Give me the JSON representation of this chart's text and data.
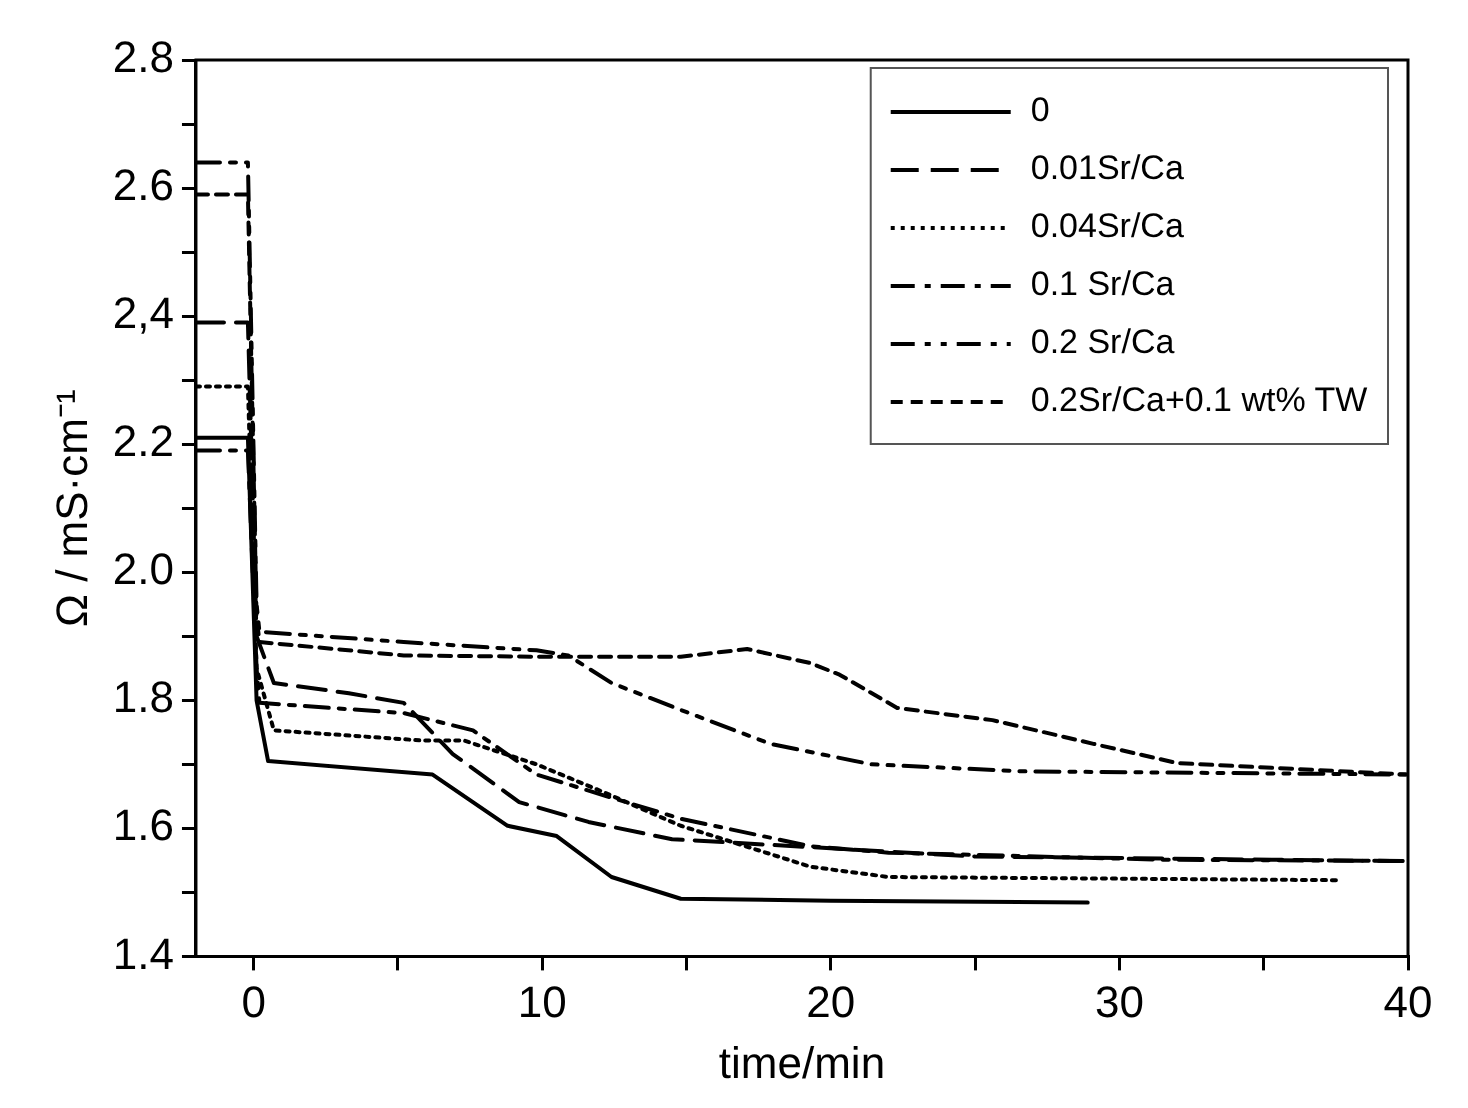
{
  "chart_data": {
    "type": "line",
    "xlabel": "time/min",
    "ylabel": "Ω / mS·cm⁻¹",
    "xlim": [
      -2,
      40
    ],
    "xticks": [
      0,
      {
        "value": 5,
        "label": null
      },
      10,
      {
        "value": 15,
        "label": null
      },
      20,
      {
        "value": 25,
        "label": null
      },
      30,
      {
        "value": 35,
        "label": null
      },
      40
    ],
    "ylim": [
      1.4,
      2.8
    ],
    "yticks": [
      1.4,
      {
        "value": 1.5,
        "label": null
      },
      1.6,
      {
        "value": 1.7,
        "label": null
      },
      1.8,
      {
        "value": 1.9,
        "label": null
      },
      {
        "value": 2,
        "label": "2.0"
      },
      {
        "value": 2.1,
        "label": null
      },
      2.2,
      {
        "value": 2.3,
        "label": null
      },
      {
        "value": 2.4,
        "label": "2,4"
      },
      {
        "value": 2.5,
        "label": null
      },
      2.6,
      {
        "value": 2.7,
        "label": null
      },
      2.8
    ],
    "grid": false,
    "legend": "top right",
    "marker": "none",
    "series": [
      {
        "name": "0",
        "color": "#000000",
        "line_style": "solid",
        "x": [
          -2,
          -0.2,
          0.1,
          0.5,
          6.2,
          8.8,
          10.5,
          12.4,
          14.8,
          20,
          28.9
        ],
        "values": [
          2.21,
          2.21,
          1.8,
          1.705,
          1.684,
          1.604,
          1.588,
          1.524,
          1.49,
          1.487,
          1.484
        ]
      },
      {
        "name": "0.01Sr/Ca",
        "color": "#000000",
        "line_style": "dashed",
        "x": [
          -2,
          -0.2,
          0.1,
          0.7,
          3.3,
          5.2,
          6.9,
          9.2,
          11.6,
          14.5,
          25,
          39.4,
          40
        ],
        "values": [
          2.39,
          2.39,
          1.9,
          1.827,
          1.811,
          1.796,
          1.716,
          1.641,
          1.61,
          1.583,
          1.556,
          1.549,
          1.549
        ]
      },
      {
        "name": "0.04Sr/Ca",
        "color": "#000000",
        "line_style": "dotted",
        "x": [
          -2,
          -0.2,
          0.1,
          0.7,
          5.9,
          7.3,
          9.8,
          12.1,
          14.8,
          19.3,
          22,
          37.6
        ],
        "values": [
          2.29,
          2.29,
          1.85,
          1.753,
          1.737,
          1.737,
          1.7,
          1.657,
          1.604,
          1.54,
          1.524,
          1.519
        ]
      },
      {
        "name": "0.1 Sr/Ca",
        "color": "#000000",
        "line_style": "dashdot",
        "x": [
          -2,
          -0.2,
          0.1,
          0.2,
          5.2,
          7.6,
          9.8,
          12.1,
          14.8,
          19.3,
          22,
          31.5,
          40
        ],
        "values": [
          2.19,
          2.19,
          1.85,
          1.796,
          1.78,
          1.753,
          1.684,
          1.652,
          1.615,
          1.572,
          1.562,
          1.551,
          1.549
        ]
      },
      {
        "name": "0.2 Sr/Ca",
        "color": "#000000",
        "line_style": "dashdotdot",
        "x": [
          -2,
          -0.2,
          0.1,
          0.2,
          5.2,
          9.8,
          10.9,
          12.4,
          14.8,
          17.9,
          21.4,
          26.7,
          40
        ],
        "values": [
          2.64,
          2.64,
          1.95,
          1.907,
          1.891,
          1.878,
          1.87,
          1.827,
          1.785,
          1.732,
          1.7,
          1.689,
          1.684
        ]
      },
      {
        "name": "0.2Sr/Ca+0.1 wt% TW",
        "color": "#000000",
        "line_style": "shortdash",
        "x": [
          -2,
          -0.2,
          0.1,
          0.2,
          5.2,
          10,
          14.8,
          17.1,
          19.3,
          20.3,
          22.3,
          25.6,
          29.1,
          32,
          40
        ],
        "values": [
          2.59,
          2.59,
          1.93,
          1.891,
          1.87,
          1.868,
          1.868,
          1.88,
          1.858,
          1.84,
          1.788,
          1.769,
          1.732,
          1.702,
          1.684
        ]
      }
    ]
  }
}
